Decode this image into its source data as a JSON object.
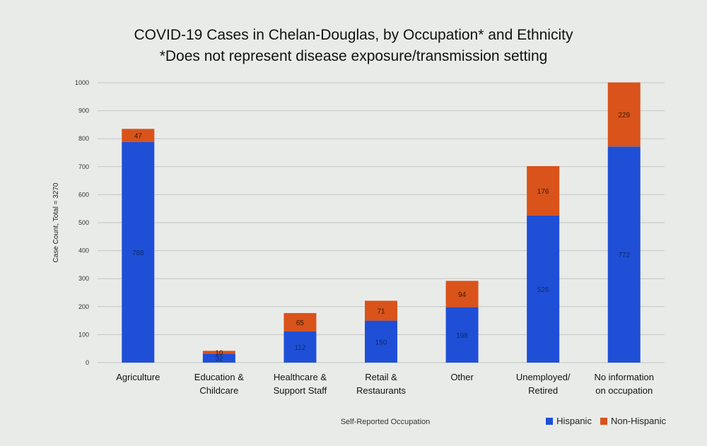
{
  "chart_data": {
    "type": "bar",
    "stacked": true,
    "title": "COVID-19 Cases in Chelan-Douglas, by Occupation* and Ethnicity",
    "subtitle": "*Does not represent disease exposure/transmission setting",
    "xlabel": "Self-Reported Occupation",
    "ylabel": "Case Count, Total = 3270",
    "ylim": [
      0,
      1000
    ],
    "yticks": [
      0,
      100,
      200,
      300,
      400,
      500,
      600,
      700,
      800,
      900,
      1000
    ],
    "grid": true,
    "legend_position": "bottom-right",
    "categories": [
      [
        "Agriculture"
      ],
      [
        "Education &",
        "Childcare"
      ],
      [
        "Healthcare &",
        "Support Staff"
      ],
      [
        "Retail &",
        "Restaurants"
      ],
      [
        "Other"
      ],
      [
        "Unemployed/",
        "Retired"
      ],
      [
        "No information",
        "on occupation"
      ]
    ],
    "series": [
      {
        "name": "Hispanic",
        "color": "#1f4fd6",
        "values": [
          788,
          32,
          112,
          150,
          198,
          526,
          772
        ],
        "labels": [
          "788",
          "32",
          "112",
          "150",
          "198",
          "526",
          "772"
        ]
      },
      {
        "name": "Non-Hispanic",
        "color": "#d9531a",
        "values": [
          47,
          10,
          65,
          71,
          94,
          176,
          229
        ],
        "labels": [
          "47",
          "10",
          "65",
          "71",
          "94",
          "176",
          "229"
        ]
      }
    ]
  }
}
